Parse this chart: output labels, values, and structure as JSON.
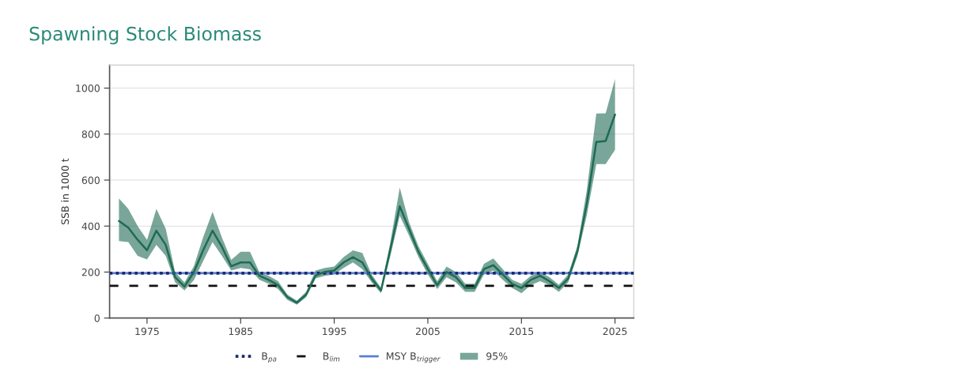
{
  "chart_data": {
    "type": "line",
    "title": "Spawning Stock Biomass",
    "ylabel": "SSB in 1000 t",
    "x": [
      1972,
      1973,
      1974,
      1975,
      1976,
      1977,
      1978,
      1979,
      1980,
      1981,
      1982,
      1983,
      1984,
      1985,
      1986,
      1987,
      1988,
      1989,
      1990,
      1991,
      1992,
      1993,
      1994,
      1995,
      1996,
      1997,
      1998,
      1999,
      2000,
      2001,
      2002,
      2003,
      2004,
      2005,
      2006,
      2007,
      2008,
      2009,
      2010,
      2011,
      2012,
      2013,
      2014,
      2015,
      2016,
      2017,
      2018,
      2019,
      2020,
      2021,
      2022,
      2023,
      2024,
      2025
    ],
    "series": [
      {
        "name": "95%",
        "color": "#1f6b55",
        "values": [
          422,
          393,
          340,
          295,
          380,
          318,
          178,
          137,
          200,
          295,
          380,
          310,
          225,
          242,
          242,
          184,
          166,
          143,
          91,
          67,
          102,
          184,
          201,
          207,
          242,
          265,
          242,
          172,
          120,
          300,
          486,
          387,
          288,
          213,
          143,
          200,
          178,
          131,
          131,
          213,
          230,
          190,
          149,
          131,
          166,
          184,
          160,
          131,
          172,
          294,
          500,
          766,
          770,
          885
        ],
        "lower": [
          335,
          330,
          270,
          255,
          318,
          270,
          155,
          120,
          165,
          248,
          330,
          270,
          207,
          218,
          212,
          166,
          149,
          126,
          79,
          58,
          91,
          172,
          184,
          190,
          218,
          242,
          213,
          155,
          108,
          270,
          445,
          358,
          265,
          190,
          126,
          178,
          155,
          114,
          114,
          190,
          207,
          166,
          131,
          108,
          143,
          160,
          143,
          114,
          155,
          271,
          450,
          670,
          670,
          731
        ],
        "upper": [
          520,
          475,
          400,
          340,
          475,
          388,
          200,
          155,
          225,
          352,
          462,
          350,
          253,
          288,
          288,
          200,
          184,
          160,
          102,
          75,
          114,
          207,
          218,
          224,
          265,
          294,
          283,
          190,
          131,
          330,
          567,
          416,
          312,
          236,
          160,
          224,
          200,
          149,
          149,
          236,
          259,
          213,
          166,
          149,
          184,
          200,
          178,
          145,
          190,
          317,
          560,
          889,
          890,
          1040
        ]
      }
    ],
    "ref_lines": [
      {
        "axis": "y",
        "value": 195,
        "label": "MSY B$_{trigger}$",
        "color": "#5b7fd6",
        "line_style": "solid"
      },
      {
        "axis": "y",
        "value": 195,
        "label": "B$_{pa}$",
        "color": "#1c2a6b",
        "line_style": "dotted"
      },
      {
        "axis": "y",
        "value": 140,
        "label": "B$_{lim}$",
        "color": "#111111",
        "line_style": "dashed"
      }
    ],
    "xlim": [
      1971,
      2027
    ],
    "xticks": [
      1975,
      1985,
      1995,
      2005,
      2015,
      2025
    ],
    "ylim": [
      0,
      1100
    ],
    "yticks": [
      0,
      200,
      400,
      600,
      800,
      1000
    ],
    "grid": "y",
    "legend": "bottom",
    "marker": "none",
    "line_style": "solid"
  }
}
